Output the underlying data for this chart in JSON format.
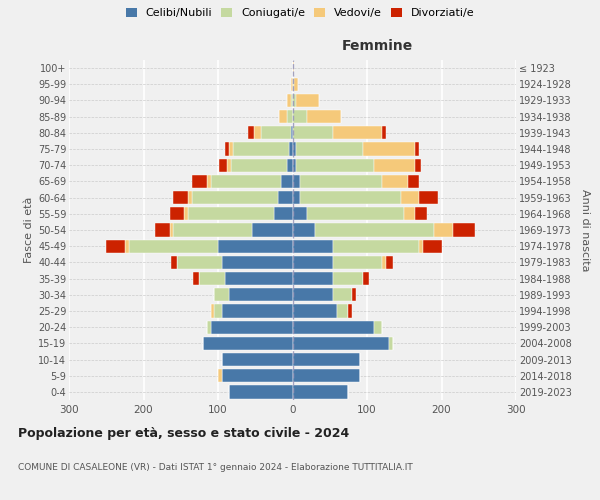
{
  "age_groups": [
    "0-4",
    "5-9",
    "10-14",
    "15-19",
    "20-24",
    "25-29",
    "30-34",
    "35-39",
    "40-44",
    "45-49",
    "50-54",
    "55-59",
    "60-64",
    "65-69",
    "70-74",
    "75-79",
    "80-84",
    "85-89",
    "90-94",
    "95-99",
    "100+"
  ],
  "birth_years": [
    "2019-2023",
    "2014-2018",
    "2009-2013",
    "2004-2008",
    "1999-2003",
    "1994-1998",
    "1989-1993",
    "1984-1988",
    "1979-1983",
    "1974-1978",
    "1969-1973",
    "1964-1968",
    "1959-1963",
    "1954-1958",
    "1949-1953",
    "1944-1948",
    "1939-1943",
    "1934-1938",
    "1929-1933",
    "1924-1928",
    "≤ 1923"
  ],
  "colors": {
    "celibe": "#4878a8",
    "coniugato": "#c5d9a0",
    "vedovo": "#f5c97a",
    "divorziato": "#cc2200"
  },
  "males": {
    "celibe": [
      85,
      95,
      95,
      120,
      110,
      95,
      85,
      90,
      95,
      100,
      55,
      25,
      20,
      15,
      8,
      5,
      2,
      0,
      0,
      0,
      0
    ],
    "coniugato": [
      0,
      0,
      0,
      0,
      5,
      10,
      20,
      35,
      60,
      120,
      105,
      115,
      115,
      95,
      75,
      75,
      40,
      8,
      2,
      0,
      0
    ],
    "vedovo": [
      0,
      5,
      0,
      0,
      0,
      5,
      0,
      0,
      0,
      5,
      5,
      5,
      5,
      5,
      5,
      5,
      10,
      10,
      5,
      2,
      0
    ],
    "divorziato": [
      0,
      0,
      0,
      0,
      0,
      0,
      0,
      8,
      8,
      25,
      20,
      20,
      20,
      20,
      10,
      5,
      8,
      0,
      0,
      0,
      0
    ]
  },
  "females": {
    "celibe": [
      75,
      90,
      90,
      130,
      110,
      60,
      55,
      55,
      55,
      55,
      30,
      20,
      10,
      10,
      5,
      5,
      0,
      0,
      0,
      0,
      0
    ],
    "coniugato": [
      0,
      0,
      0,
      5,
      10,
      15,
      25,
      40,
      65,
      115,
      160,
      130,
      135,
      110,
      105,
      90,
      55,
      20,
      5,
      2,
      0
    ],
    "vedovo": [
      0,
      0,
      0,
      0,
      0,
      0,
      0,
      0,
      5,
      5,
      25,
      15,
      25,
      35,
      55,
      70,
      65,
      45,
      30,
      5,
      2
    ],
    "divorziato": [
      0,
      0,
      0,
      0,
      0,
      5,
      5,
      8,
      10,
      25,
      30,
      15,
      25,
      15,
      8,
      5,
      5,
      0,
      0,
      0,
      0
    ]
  },
  "title": "Popolazione per età, sesso e stato civile - 2024",
  "subtitle": "COMUNE DI CASALEONE (VR) - Dati ISTAT 1° gennaio 2024 - Elaborazione TUTTITALIA.IT",
  "xlabel_right": "Femmine",
  "ylabel_left": "Fasce di età",
  "ylabel_right": "Anni di nascita",
  "xlim": 300,
  "bg_color": "#f0f0f0",
  "legend_labels": [
    "Celibi/Nubili",
    "Coniugati/e",
    "Vedovi/e",
    "Divorziati/e"
  ]
}
